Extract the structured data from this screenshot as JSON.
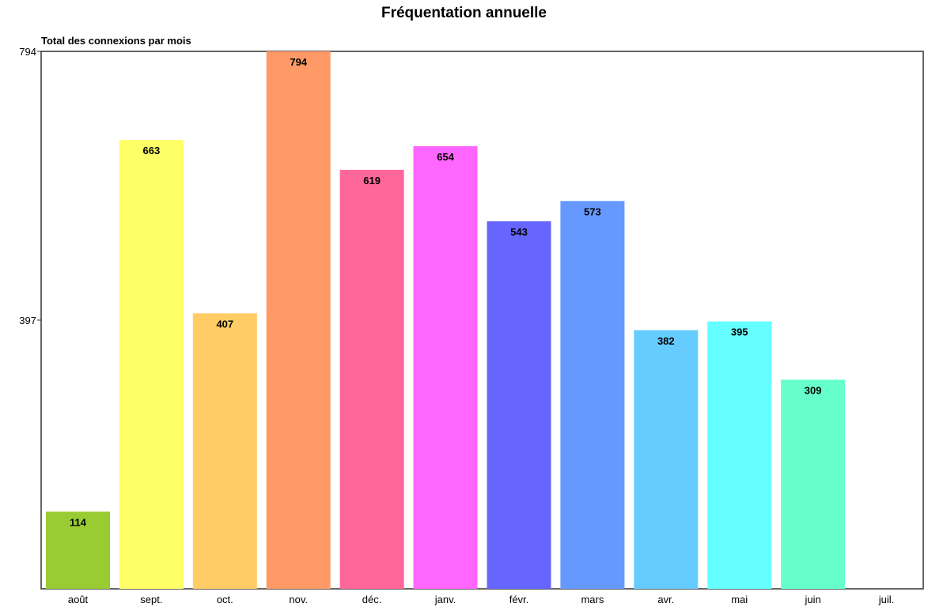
{
  "chart_data": {
    "type": "bar",
    "title": "Fréquentation annuelle",
    "ylabel": "Total des connexions par mois",
    "categories": [
      "août",
      "sept.",
      "oct.",
      "nov.",
      "déc.",
      "janv.",
      "févr.",
      "mars",
      "avr.",
      "mai",
      "juin",
      "juil."
    ],
    "values": [
      114,
      663,
      407,
      794,
      619,
      654,
      543,
      573,
      382,
      395,
      309,
      null
    ],
    "value_labels": [
      "114",
      "663",
      "407",
      "794",
      "619",
      "654",
      "543",
      "573",
      "382",
      "395",
      "309",
      ""
    ],
    "colors": [
      "#99cc33",
      "#ffff66",
      "#ffcc66",
      "#ff9966",
      "#ff6699",
      "#ff66ff",
      "#6666ff",
      "#6699ff",
      "#66ccff",
      "#66ffff",
      "#66ffcc",
      "#cccccc"
    ],
    "ylim": [
      0,
      794
    ],
    "yticks": [
      397,
      794
    ],
    "ytick_labels": [
      "397",
      "794"
    ],
    "grid": false,
    "legend": "none"
  }
}
